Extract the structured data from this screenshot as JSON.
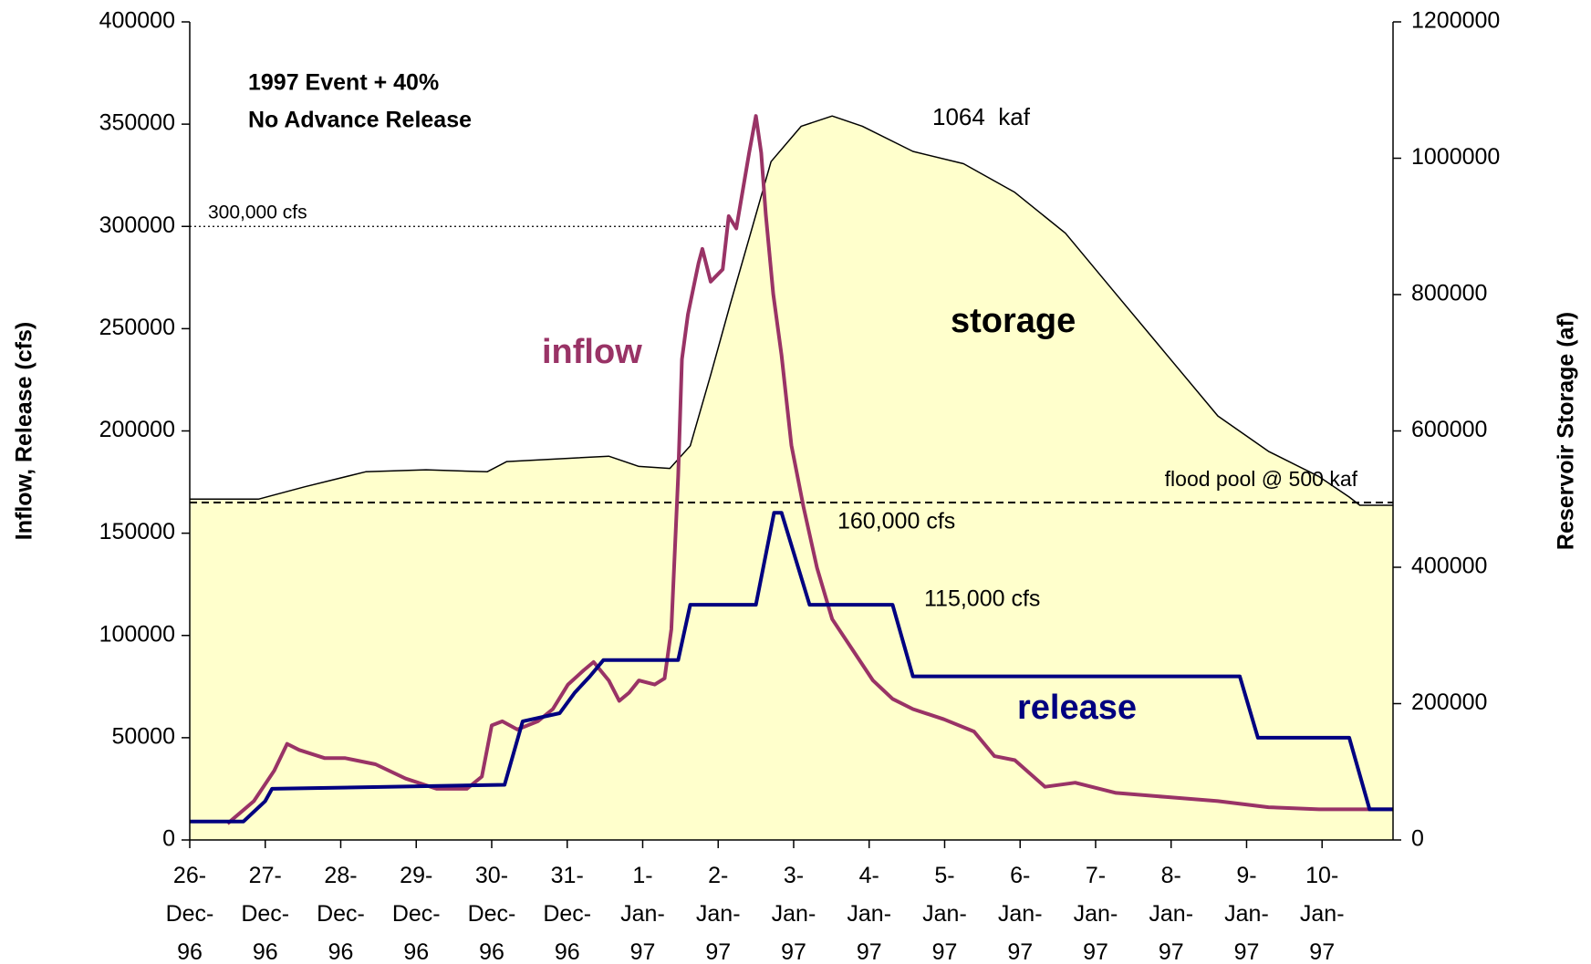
{
  "chart_data": {
    "type": "line",
    "annotations": [
      "1997 Event + 40%",
      "No Advance Release",
      "1064  kaf",
      "160,000 cfs",
      "115,000 cfs"
    ],
    "y_label": "Inflow, Release (cfs)",
    "y2_label": "Reservoir Storage (af)",
    "xlim": [
      0,
      15.94
    ],
    "xticks": [
      {
        "value": 0,
        "label": "26-Dec-96"
      },
      {
        "value": 1,
        "label": "27-Dec-96"
      },
      {
        "value": 2,
        "label": "28-Dec-96"
      },
      {
        "value": 3,
        "label": "29-Dec-96"
      },
      {
        "value": 4,
        "label": "30-Dec-96"
      },
      {
        "value": 5,
        "label": "31-Dec-96"
      },
      {
        "value": 6,
        "label": "1-Jan-97"
      },
      {
        "value": 7,
        "label": "2-Jan-97"
      },
      {
        "value": 8,
        "label": "3-Jan-97"
      },
      {
        "value": 9,
        "label": "4-Jan-97"
      },
      {
        "value": 10,
        "label": "5-Jan-97"
      },
      {
        "value": 11,
        "label": "6-Jan-97"
      },
      {
        "value": 12,
        "label": "7-Jan-97"
      },
      {
        "value": 13,
        "label": "8-Jan-97"
      },
      {
        "value": 14,
        "label": "9-Jan-97"
      },
      {
        "value": 15,
        "label": "10-Jan-97"
      }
    ],
    "ylim": [
      0,
      400000
    ],
    "yticks": [
      0,
      50000,
      100000,
      150000,
      200000,
      250000,
      300000,
      350000,
      400000
    ],
    "y2lim": [
      0,
      1200000
    ],
    "y2ticks": [
      0,
      200000,
      400000,
      600000,
      800000,
      1000000,
      1200000
    ],
    "reference_lines": [
      {
        "label": "300,000 cfs",
        "value": 300000,
        "axis": "y",
        "x_end": 7.1,
        "style": "dotted"
      },
      {
        "label": "flood pool @ 500 kaf",
        "value": 495000,
        "axis": "y2",
        "x_end": 15.94,
        "style": "dashed"
      }
    ],
    "series": [
      {
        "name": "storage",
        "color": "#000000",
        "fill": "#ffffcc",
        "axis": "y2",
        "x": [
          0,
          0.91,
          1.52,
          2.33,
          3.13,
          3.94,
          4.2,
          5.55,
          5.95,
          6.36,
          6.63,
          6.9,
          7.16,
          7.43,
          7.7,
          8.1,
          8.51,
          8.91,
          9.58,
          10.25,
          10.93,
          11.6,
          12.27,
          12.94,
          13.62,
          14.29,
          14.96,
          15.36,
          15.5,
          15.94
        ],
        "values": [
          500000,
          500000,
          518000,
          540000,
          543000,
          540000,
          555000,
          563000,
          548000,
          545000,
          578000,
          682000,
          786000,
          890000,
          995000,
          1047000,
          1062000,
          1047000,
          1010000,
          992000,
          950000,
          890000,
          801000,
          712000,
          622000,
          570000,
          533000,
          503000,
          491000,
          491000
        ]
      },
      {
        "name": "inflow",
        "color": "#993366",
        "x": [
          0.5,
          0.85,
          1.12,
          1.29,
          1.45,
          1.79,
          2.06,
          2.46,
          2.86,
          3.27,
          3.67,
          3.87,
          4.0,
          4.14,
          4.34,
          4.61,
          4.81,
          5.01,
          5.22,
          5.35,
          5.55,
          5.69,
          5.82,
          5.95,
          6.16,
          6.29,
          6.38,
          6.47,
          6.52,
          6.6,
          6.74,
          6.79,
          6.9,
          7.06,
          7.14,
          7.24,
          7.41,
          7.5,
          7.57,
          7.63,
          7.73,
          7.84,
          7.97,
          8.13,
          8.31,
          8.51,
          8.78,
          9.05,
          9.31,
          9.58,
          9.99,
          10.39,
          10.66,
          10.93,
          11.33,
          11.73,
          12.27,
          12.94,
          13.62,
          14.29,
          14.96,
          15.94
        ],
        "values": [
          8000,
          19000,
          34000,
          47000,
          44000,
          40000,
          40000,
          37000,
          30000,
          25000,
          25000,
          31000,
          56000,
          58000,
          54000,
          58000,
          64000,
          76000,
          83000,
          87000,
          78000,
          68000,
          72000,
          78000,
          76000,
          79000,
          103000,
          178000,
          235000,
          257000,
          282000,
          289000,
          273000,
          279000,
          305000,
          299000,
          336000,
          354000,
          336000,
          306000,
          267000,
          237000,
          193000,
          163000,
          133000,
          108000,
          93000,
          78000,
          69000,
          64000,
          59000,
          53000,
          41000,
          39000,
          26000,
          28000,
          23000,
          21000,
          19000,
          16000,
          15000,
          15000
        ]
      },
      {
        "name": "release",
        "color": "#000080",
        "x": [
          0,
          0.71,
          1.0,
          1.09,
          4.17,
          4.41,
          4.9,
          5.1,
          5.3,
          5.48,
          6.47,
          6.63,
          7.5,
          7.74,
          7.84,
          8.21,
          9.31,
          9.58,
          13.91,
          14.15,
          15.36,
          15.63,
          15.94
        ],
        "values": [
          9000,
          9000,
          19000,
          25000,
          27000,
          58000,
          62000,
          72000,
          80000,
          88000,
          88000,
          115000,
          115000,
          160000,
          160000,
          115000,
          115000,
          80000,
          80000,
          50000,
          50000,
          15000,
          15000
        ]
      }
    ]
  }
}
